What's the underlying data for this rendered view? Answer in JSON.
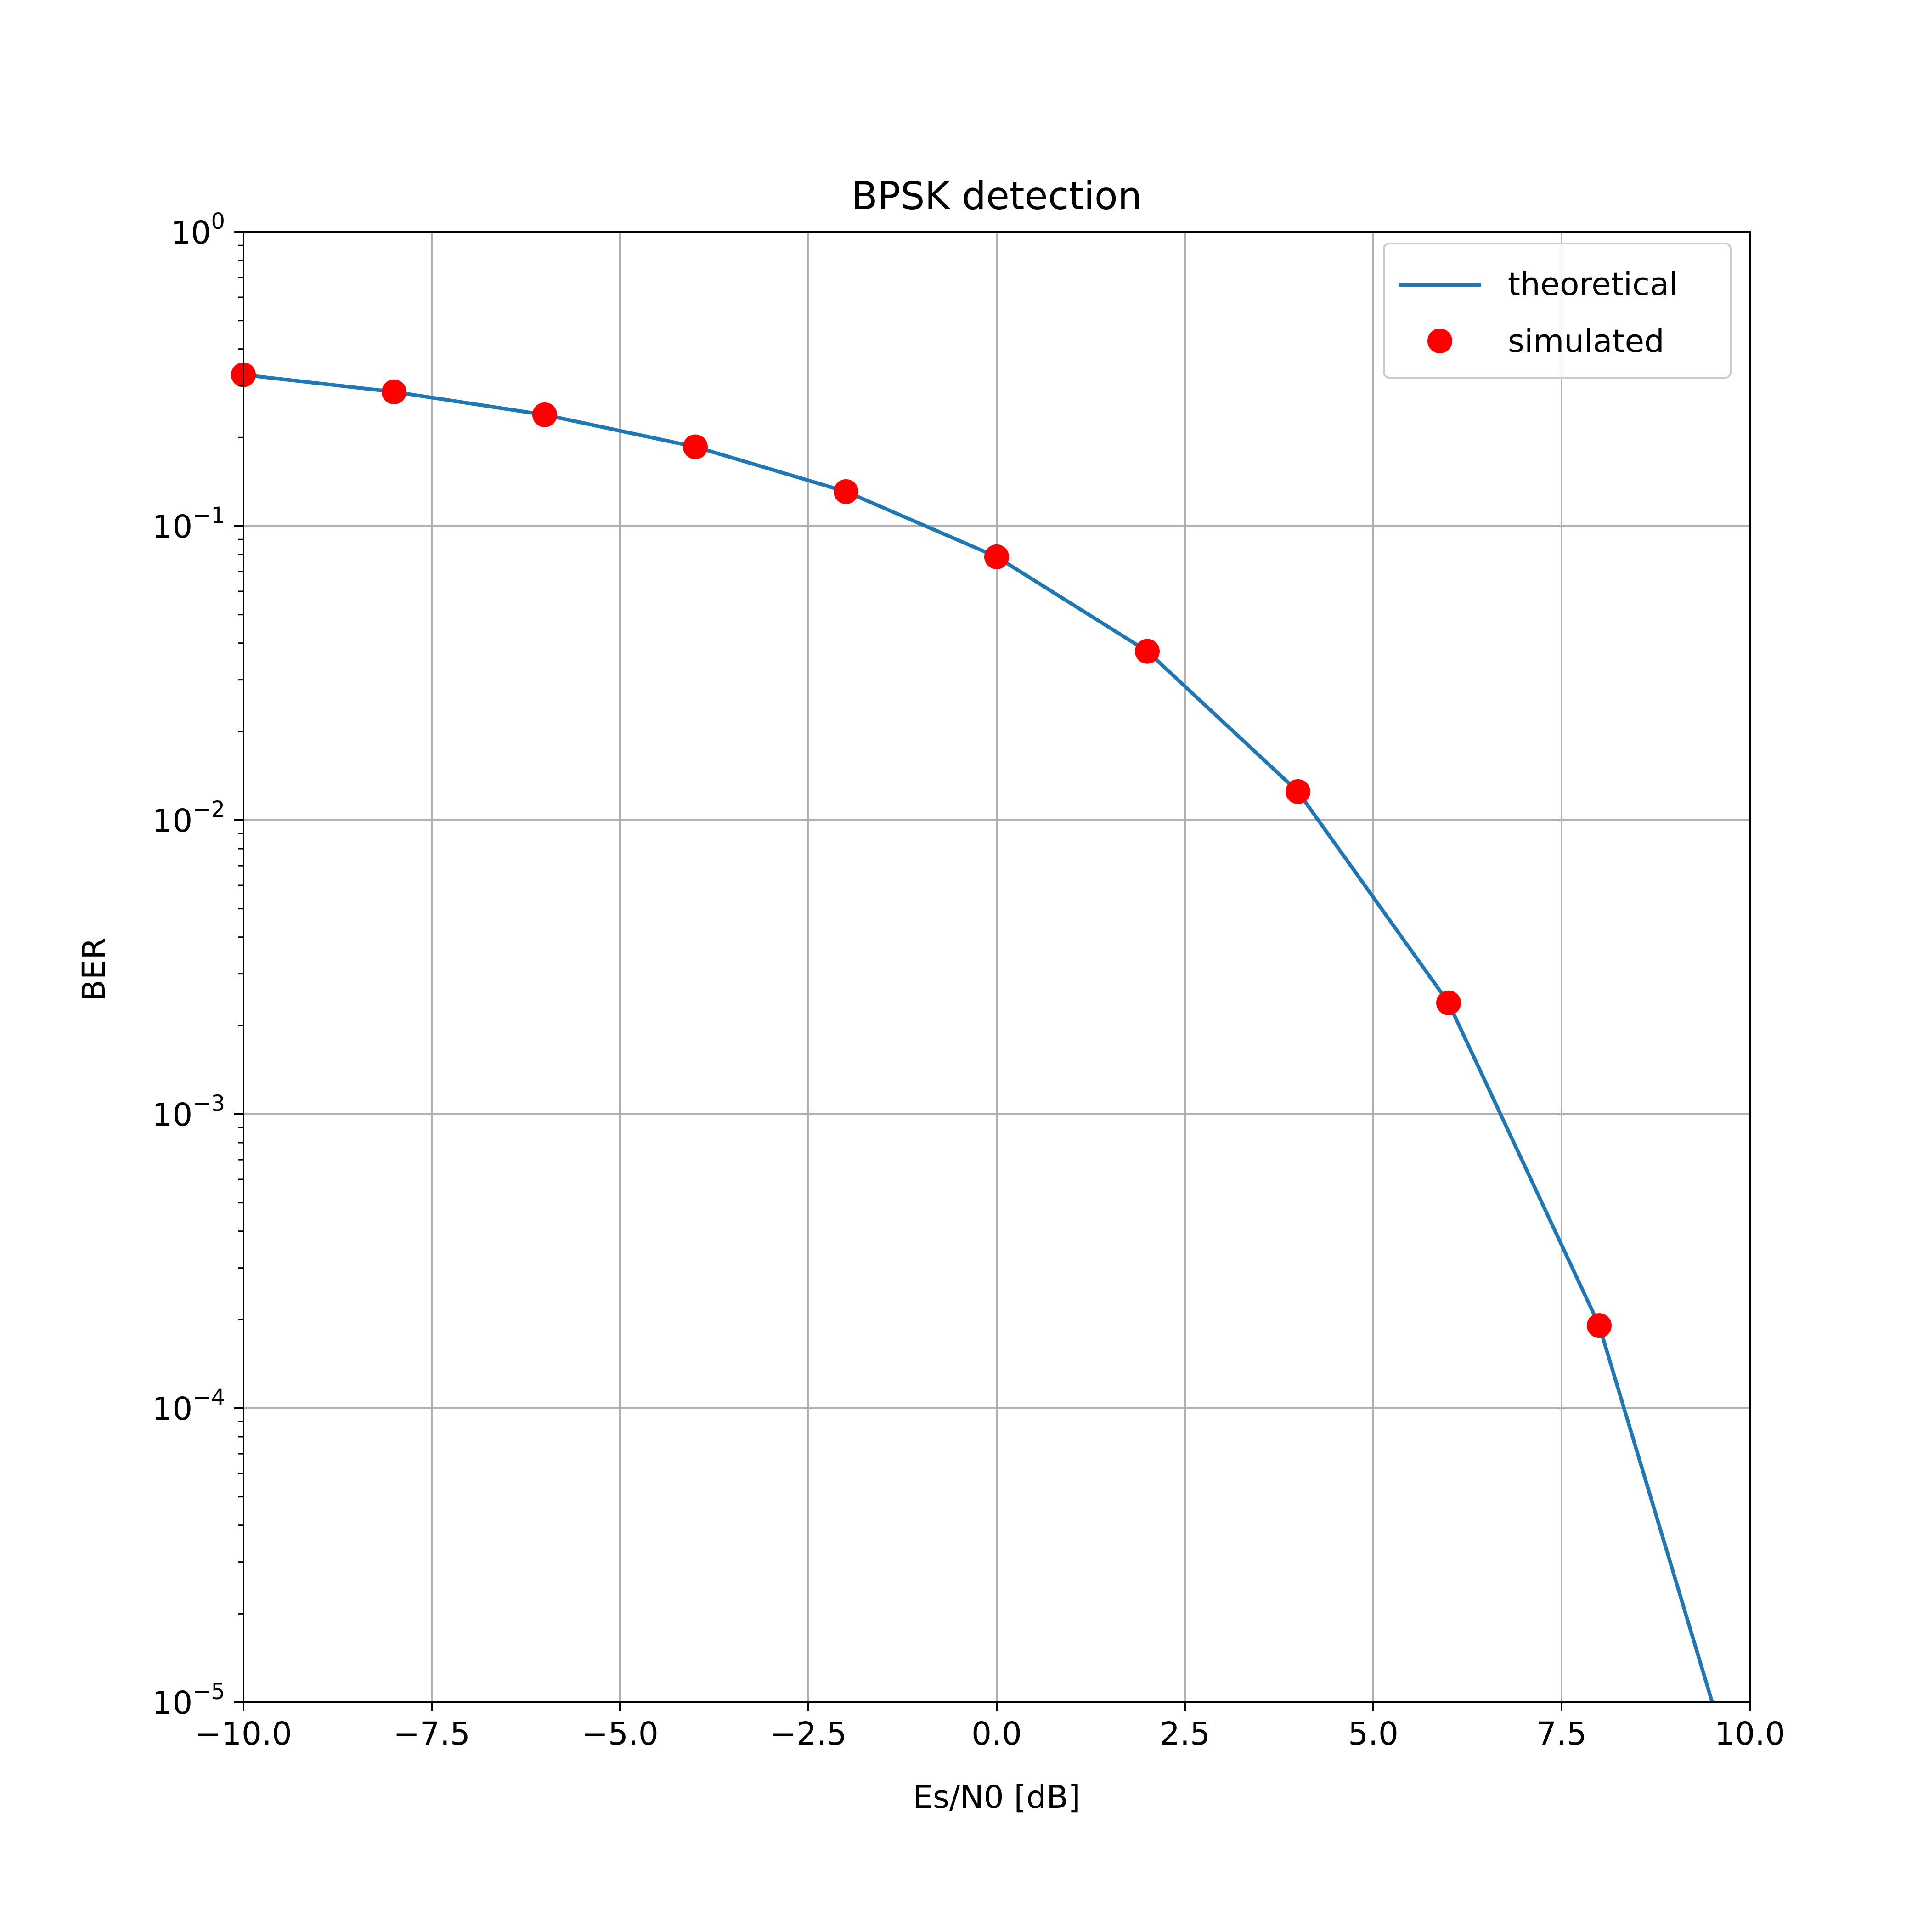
{
  "chart_data": {
    "type": "line",
    "title": "BPSK detection",
    "xlabel": "Es/N0 [dB]",
    "ylabel": "BER",
    "xlim": [
      -10,
      10
    ],
    "ylim": [
      1e-05,
      1
    ],
    "yscale": "log",
    "grid": true,
    "legend_position": "top-right",
    "x_ticks": [
      "−10.0",
      "−7.5",
      "−5.0",
      "−2.5",
      "0.0",
      "2.5",
      "5.0",
      "7.5",
      "10.0"
    ],
    "x_tick_values": [
      -10,
      -7.5,
      -5,
      -2.5,
      0,
      2.5,
      5,
      7.5,
      10
    ],
    "y_tick_exponents": [
      0,
      -1,
      -2,
      -3,
      -4,
      -5
    ],
    "y_tick_base": "10",
    "y_tick_sup": [
      "0",
      "−1",
      "−2",
      "−3",
      "−4",
      "−5"
    ],
    "series": [
      {
        "name": "theoretical",
        "style": "line",
        "color": "#1f77b4",
        "x": [
          -10,
          -8,
          -6,
          -4,
          -2,
          0,
          2,
          4,
          6,
          8,
          9.5
        ],
        "y": [
          0.327,
          0.286,
          0.239,
          0.186,
          0.131,
          0.0786,
          0.0375,
          0.0125,
          0.00239,
          0.000191,
          1e-05
        ]
      },
      {
        "name": "simulated",
        "style": "markers",
        "color": "#ff0000",
        "x": [
          -10,
          -8,
          -6,
          -4,
          -2,
          0,
          2,
          4,
          6,
          8
        ],
        "y": [
          0.327,
          0.286,
          0.239,
          0.186,
          0.131,
          0.0786,
          0.0375,
          0.0125,
          0.00239,
          0.000191
        ]
      }
    ]
  }
}
